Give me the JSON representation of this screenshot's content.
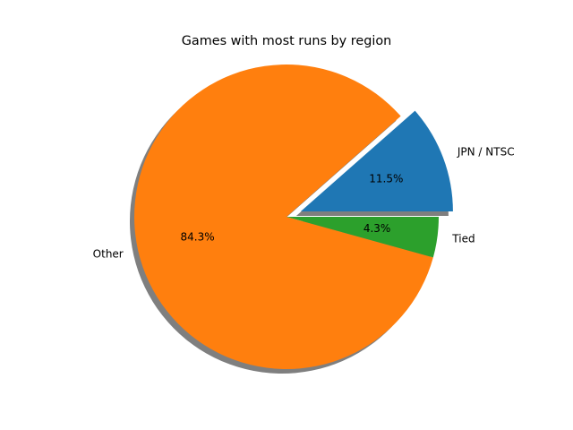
{
  "chart_data": {
    "type": "pie",
    "title": "Games with most runs by region",
    "start_angle_deg": 0,
    "shadow": true,
    "slices": [
      {
        "label": "JPN / NTSC",
        "value": 11.5,
        "pct_label": "11.5%",
        "color": "#1f77b4",
        "exploded": true
      },
      {
        "label": "Other",
        "value": 84.3,
        "pct_label": "84.3%",
        "color": "#ff7f0e",
        "exploded": false
      },
      {
        "label": "Tied",
        "value": 4.3,
        "pct_label": "4.3%",
        "color": "#2ca02c",
        "exploded": false
      }
    ]
  }
}
